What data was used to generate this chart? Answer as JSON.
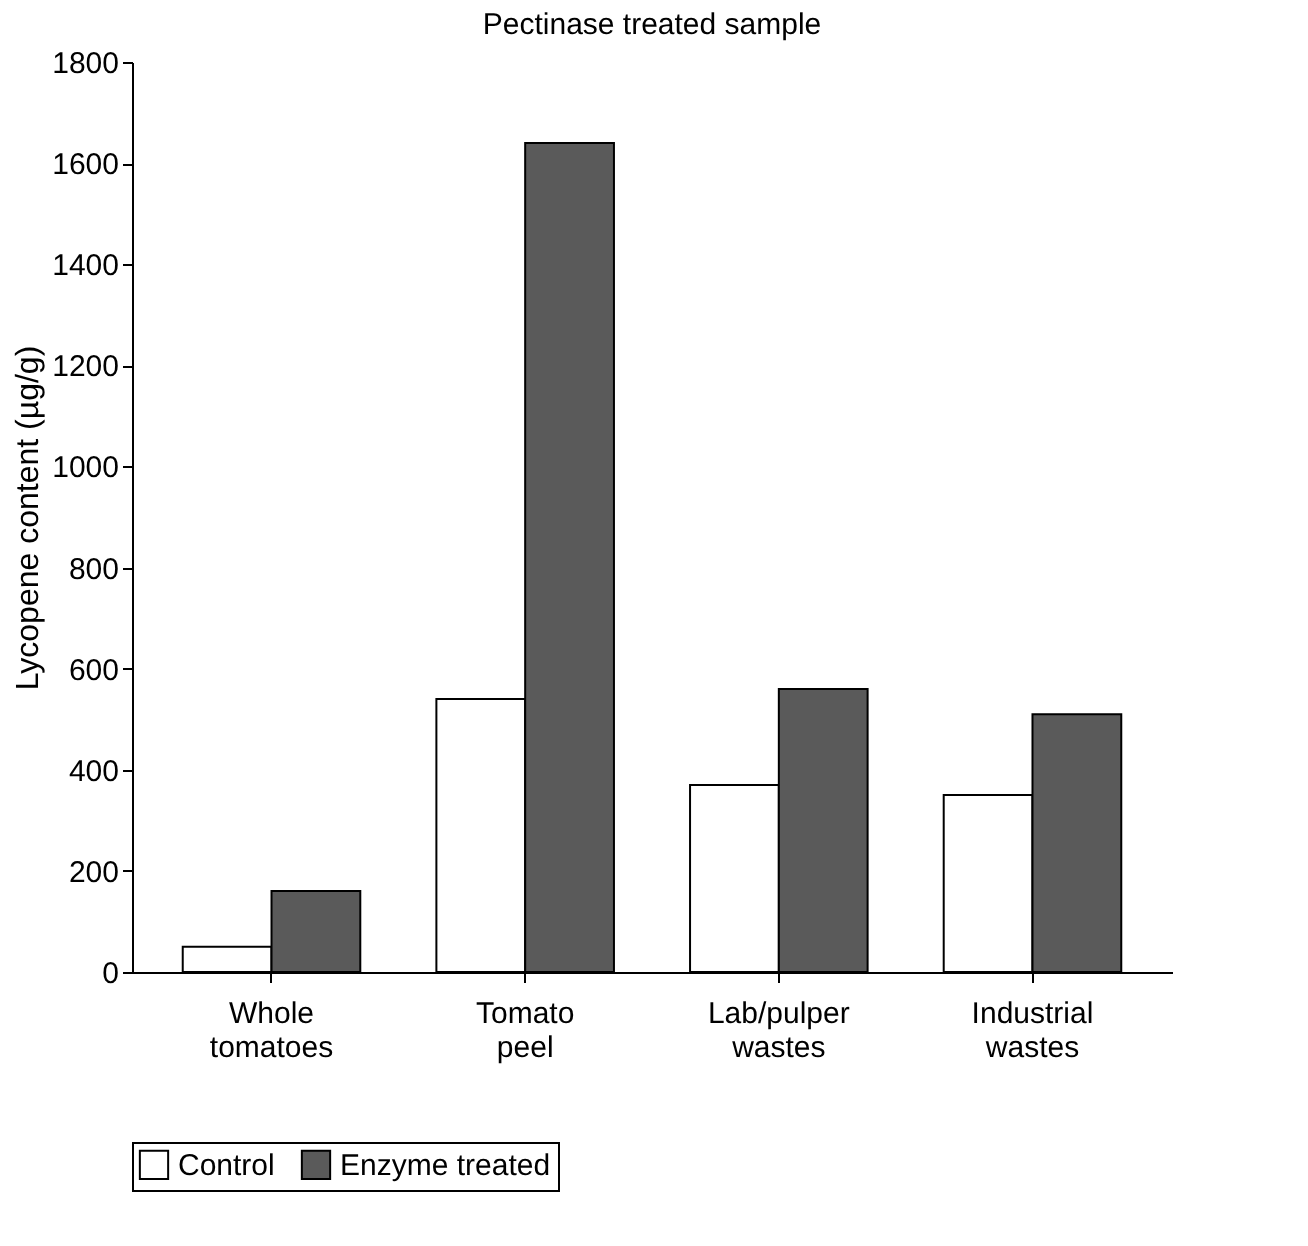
{
  "chart_data": {
    "type": "bar",
    "title": "Pectinase treated sample",
    "ylabel": "Lycopene content (µg/g)",
    "categories": [
      "Whole tomatoes",
      "Tomato peel",
      "Lab/pulper wastes",
      "Industrial wastes"
    ],
    "series": [
      {
        "name": "Control",
        "color": "#ffffff",
        "values": [
          50,
          540,
          370,
          350
        ]
      },
      {
        "name": "Enzyme treated",
        "color": "#5a5a5a",
        "values": [
          160,
          1640,
          560,
          510
        ]
      }
    ],
    "ylim": [
      0,
      1800
    ],
    "yticks": [
      0,
      200,
      400,
      600,
      800,
      1000,
      1200,
      1400,
      1600,
      1800
    ],
    "grid": false,
    "legend": "bottom"
  }
}
